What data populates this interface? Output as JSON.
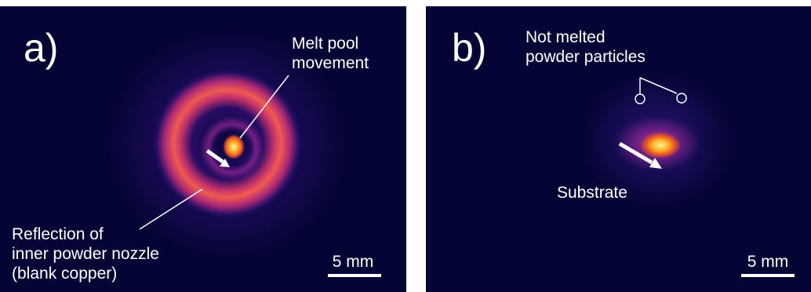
{
  "panels": [
    {
      "letter": "a)",
      "labels": {
        "melt_pool_line1": "Melt pool",
        "melt_pool_line2": "movement",
        "reflection_line1": "Reflection of",
        "reflection_line2": "inner powder nozzle",
        "reflection_line3": "(blank copper)"
      },
      "scale_bar": "5 mm"
    },
    {
      "letter": "b)",
      "labels": {
        "not_melted_line1": "Not melted",
        "not_melted_line2": "powder particles",
        "substrate": "Substrate"
      },
      "scale_bar": "5 mm"
    }
  ],
  "colors": {
    "background": "#050535",
    "ring": "#e0405a",
    "hotspot": "#ffb020",
    "annotation": "#ffffff"
  }
}
